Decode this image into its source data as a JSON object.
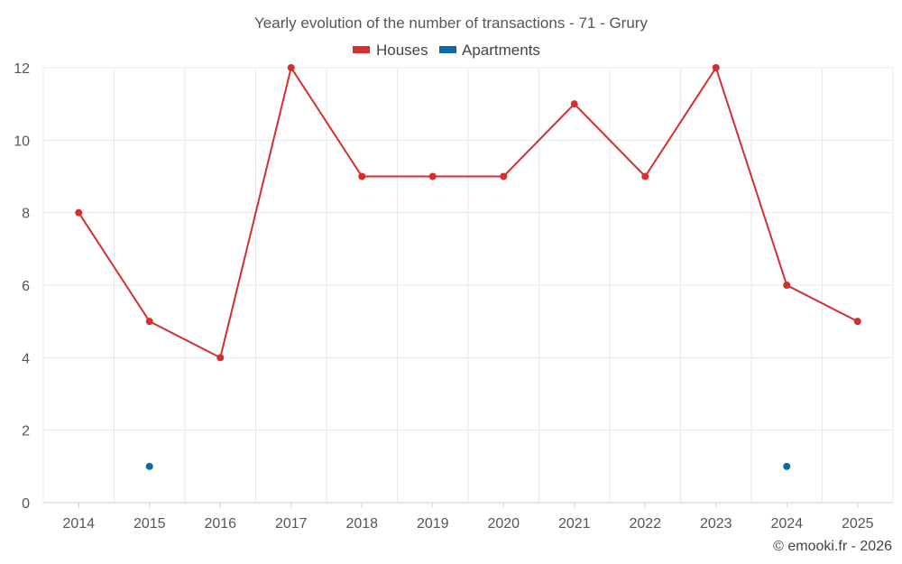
{
  "chart_data": {
    "type": "line",
    "title": "Yearly evolution of the number of transactions - 71 - Grury",
    "categories": [
      "2014",
      "2015",
      "2016",
      "2017",
      "2018",
      "2019",
      "2020",
      "2021",
      "2022",
      "2023",
      "2024",
      "2025"
    ],
    "series": [
      {
        "name": "Houses",
        "color": "#d32f2f",
        "values": [
          8,
          5,
          4,
          12,
          9,
          9,
          9,
          11,
          9,
          12,
          6,
          5
        ]
      },
      {
        "name": "Apartments",
        "color": "#0d6aa8",
        "values": [
          null,
          1,
          null,
          null,
          null,
          null,
          null,
          null,
          null,
          null,
          1,
          null
        ]
      }
    ],
    "ylim": [
      0,
      12
    ],
    "yticks": [
      "0",
      "2",
      "4",
      "6",
      "8",
      "10",
      "12"
    ],
    "legend_position": "top-center",
    "grid": true,
    "xlabel": "",
    "ylabel": ""
  },
  "credit": "© emooki.fr - 2026"
}
